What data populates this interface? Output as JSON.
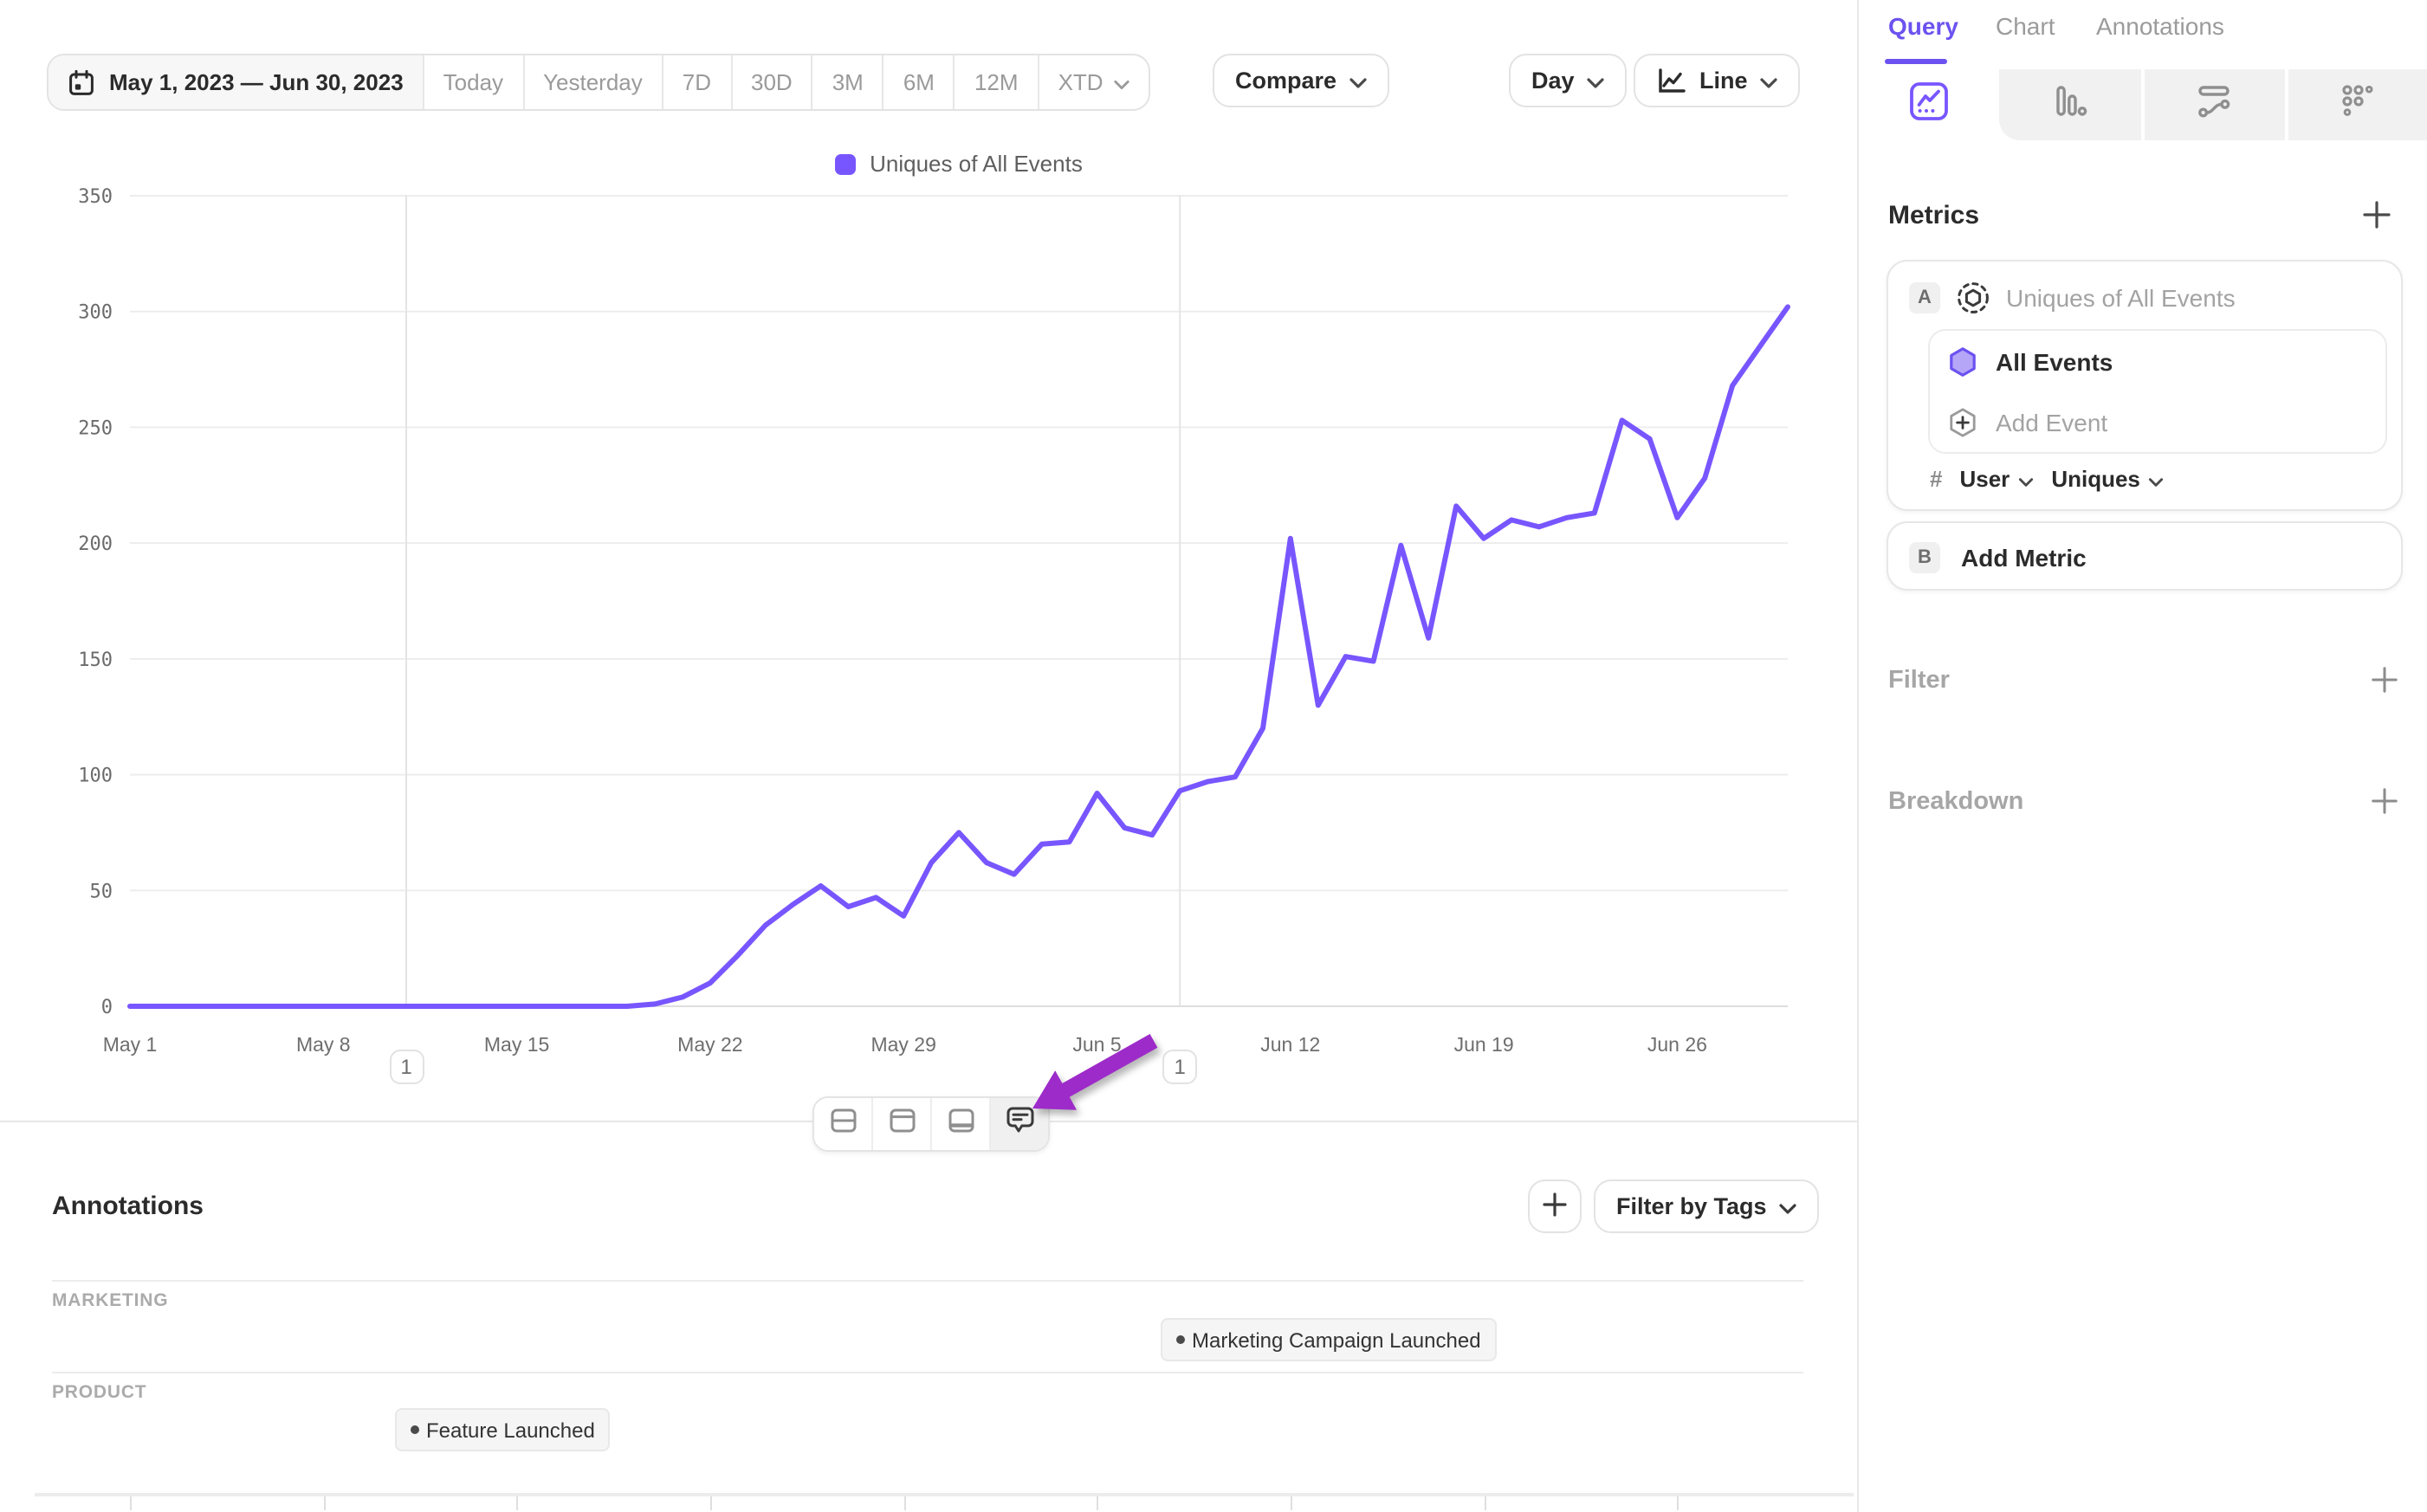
{
  "colors": {
    "accent": "#7856FF",
    "arrow": "#9D2BC9",
    "grid": "#ededed",
    "muted_text": "#9a9a9a"
  },
  "toolbar": {
    "date_range": "May 1, 2023 — Jun 30, 2023",
    "presets": [
      "Today",
      "Yesterday",
      "7D",
      "30D",
      "3M",
      "6M",
      "12M",
      "XTD"
    ],
    "compare_label": "Compare",
    "interval_label": "Day",
    "chart_type_label": "Line"
  },
  "legend": {
    "label": "Uniques of All Events",
    "color": "#7856FF"
  },
  "chart_data": {
    "type": "line",
    "title": "Uniques of All Events",
    "ylim": [
      0,
      350
    ],
    "yticks": [
      0,
      50,
      100,
      150,
      200,
      250,
      300,
      350
    ],
    "xtick_labels": [
      "May 1",
      "May 8",
      "May 15",
      "May 22",
      "May 29",
      "Jun 5",
      "Jun 12",
      "Jun 19",
      "Jun 26"
    ],
    "xtick_days": [
      0,
      7,
      14,
      21,
      28,
      35,
      42,
      49,
      56
    ],
    "grid": true,
    "legend_position": "top",
    "x_dates": [
      "May 1",
      "May 2",
      "May 3",
      "May 4",
      "May 5",
      "May 6",
      "May 7",
      "May 8",
      "May 9",
      "May 10",
      "May 11",
      "May 12",
      "May 13",
      "May 14",
      "May 15",
      "May 16",
      "May 17",
      "May 18",
      "May 19",
      "May 20",
      "May 21",
      "May 22",
      "May 23",
      "May 24",
      "May 25",
      "May 26",
      "May 27",
      "May 28",
      "May 29",
      "May 30",
      "May 31",
      "Jun 1",
      "Jun 2",
      "Jun 3",
      "Jun 4",
      "Jun 5",
      "Jun 6",
      "Jun 7",
      "Jun 8",
      "Jun 9",
      "Jun 10",
      "Jun 11",
      "Jun 12",
      "Jun 13",
      "Jun 14",
      "Jun 15",
      "Jun 16",
      "Jun 17",
      "Jun 18",
      "Jun 19",
      "Jun 20",
      "Jun 21",
      "Jun 22",
      "Jun 23",
      "Jun 24",
      "Jun 25",
      "Jun 26",
      "Jun 27",
      "Jun 28",
      "Jun 29",
      "Jun 30"
    ],
    "series": [
      {
        "name": "Uniques of All Events",
        "color": "#7856FF",
        "values": [
          0,
          0,
          0,
          0,
          0,
          0,
          0,
          0,
          0,
          0,
          0,
          0,
          0,
          0,
          0,
          0,
          0,
          0,
          0,
          1,
          4,
          10,
          22,
          35,
          44,
          52,
          43,
          47,
          39,
          62,
          75,
          62,
          57,
          70,
          71,
          92,
          77,
          74,
          93,
          97,
          99,
          120,
          202,
          130,
          151,
          149,
          199,
          159,
          216,
          202,
          210,
          207,
          211,
          213,
          253,
          245,
          211,
          228,
          268,
          285,
          302
        ]
      }
    ],
    "annotation_markers": [
      {
        "day": 10,
        "date": "May 11",
        "badge": "1"
      },
      {
        "day": 38,
        "date": "Jun 8",
        "badge": "1"
      }
    ]
  },
  "annotations_panel": {
    "title": "Annotations",
    "filter_button": "Filter by Tags",
    "groups": [
      {
        "name": "MARKETING",
        "items": [
          {
            "label": "Marketing Campaign Launched",
            "date": "Jun 8"
          }
        ]
      },
      {
        "name": "PRODUCT",
        "items": [
          {
            "label": "Feature Launched",
            "date": "May 11"
          }
        ]
      }
    ]
  },
  "sidebar": {
    "tabs": [
      {
        "label": "Query",
        "active": true
      },
      {
        "label": "Chart",
        "active": false
      },
      {
        "label": "Annotations",
        "active": false
      }
    ],
    "chart_type_icons": [
      "line-chart",
      "bar-chart",
      "flow-chart",
      "dot-grid"
    ],
    "metrics": {
      "title": "Metrics",
      "rows": [
        {
          "badge": "A",
          "label": "Uniques of All Events",
          "events": [
            {
              "name": "All Events"
            }
          ],
          "add_event_label": "Add Event",
          "aggregation": {
            "prefix": "#",
            "entity": "User",
            "measure": "Uniques"
          }
        },
        {
          "badge": "B",
          "label": "Add Metric"
        }
      ]
    },
    "filter": {
      "label": "Filter"
    },
    "breakdown": {
      "label": "Breakdown"
    }
  }
}
